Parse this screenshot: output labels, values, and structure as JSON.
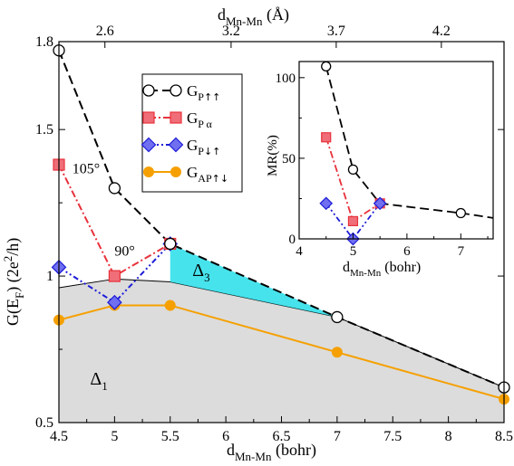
{
  "chart_data": [
    {
      "type": "line",
      "xlabel": "d",
      "xlabel_sub": "Mn-Mn",
      "xlabel_unit": " (bohr)",
      "ylabel": "G(E",
      "ylabel_sub": "F",
      "ylabel_unit": ") (2e",
      "ylabel_sup": "2",
      "ylabel_tail": "/h)",
      "top_xlabel": "d",
      "top_xlabel_sub": "Mn-Mn",
      "top_xlabel_unit": " (Å)",
      "xlim": [
        4.5,
        8.5
      ],
      "ylim": [
        0.5,
        1.8
      ],
      "x_ticks": [
        4.5,
        5,
        5.5,
        6,
        6.5,
        7,
        7.5,
        8,
        8.5
      ],
      "x_tick_labels": [
        "4.5",
        "5",
        "5.5",
        "6",
        "6.5",
        "7",
        "7.5",
        "8",
        "8.5"
      ],
      "y_ticks": [
        0.5,
        1,
        1.5,
        1.8
      ],
      "y_tick_labels": [
        "0.5",
        "1",
        "1.5",
        "1.8"
      ],
      "top_ticks": [
        2.6,
        3.2,
        3.7,
        4.2
      ],
      "top_tick_labels": [
        "2.6",
        "3.2",
        "3.7",
        "4.2"
      ],
      "grid": false,
      "legend_position": "upper-middle",
      "series": [
        {
          "name": "G",
          "sub": "P",
          "arrows": "↑↑",
          "color": "#000000",
          "marker": "circle-open",
          "dash": "10,5",
          "x": [
            4.5,
            5,
            5.5,
            7,
            8.5
          ],
          "y": [
            1.77,
            1.3,
            1.11,
            0.86,
            0.62
          ]
        },
        {
          "name": "G",
          "sub": "P α",
          "arrows": "",
          "color": "#e8323c",
          "marker": "square",
          "dash": "8,3,2,3",
          "x": [
            4.5,
            5,
            5.5
          ],
          "y": [
            1.38,
            1.0,
            1.11
          ]
        },
        {
          "name": "G",
          "sub": "P",
          "arrows": "↓↑",
          "color": "#1c1cd8",
          "marker": "diamond",
          "dash": "6,3,2,3,2,3",
          "x": [
            4.5,
            5,
            5.5
          ],
          "y": [
            1.03,
            0.91,
            1.11
          ]
        },
        {
          "name": "G",
          "sub": "AP",
          "arrows": "↑↓",
          "color": "#f5a000",
          "marker": "circle-filled",
          "dash": "",
          "x": [
            4.5,
            5,
            5.5,
            7,
            8.5
          ],
          "y": [
            0.85,
            0.9,
            0.9,
            0.74,
            0.58
          ]
        }
      ],
      "shaded_regions": [
        {
          "label": "Δ",
          "sub": "1",
          "color": "#dcdcdc",
          "upper_x": [
            4.5,
            5,
            5.5,
            7,
            8.5
          ],
          "upper_y": [
            0.96,
            0.99,
            0.98,
            0.86,
            0.62
          ],
          "label_at": [
            4.78,
            0.63
          ]
        },
        {
          "label": "Δ",
          "sub": "3",
          "color": "#33e0ea",
          "upper_x": [
            5.5,
            7,
            8.5
          ],
          "upper_y": [
            1.11,
            0.86,
            0.62
          ],
          "lower_x": [
            5.5,
            7,
            8.5
          ],
          "lower_y": [
            0.98,
            0.86,
            0.62
          ],
          "label_at": [
            5.7,
            1.0
          ]
        }
      ],
      "annotations": [
        {
          "text": "105°",
          "at": [
            4.62,
            1.35
          ]
        },
        {
          "text": "90°",
          "at": [
            5.0,
            1.07
          ]
        }
      ]
    },
    {
      "type": "line",
      "xlabel": "d",
      "xlabel_sub": "Mn-Mn",
      "xlabel_unit": " (bohr)",
      "ylabel": "MR(%)",
      "xlim": [
        4,
        7.6
      ],
      "ylim": [
        0,
        110
      ],
      "x_ticks": [
        4,
        5,
        6,
        7
      ],
      "x_tick_labels": [
        "4",
        "5",
        "6",
        "7"
      ],
      "y_ticks": [
        0,
        50,
        100
      ],
      "y_tick_labels": [
        "0",
        "50",
        "100"
      ],
      "series": [
        {
          "color": "#000000",
          "marker": "circle-open",
          "dash": "10,5",
          "x": [
            4.5,
            5,
            5.5,
            7,
            7.6
          ],
          "y": [
            107,
            43,
            22,
            16,
            13
          ],
          "marked": [
            true,
            true,
            true,
            true,
            false
          ]
        },
        {
          "color": "#e8323c",
          "marker": "square",
          "dash": "8,3,2,3",
          "x": [
            4.5,
            5,
            5.5
          ],
          "y": [
            63,
            11,
            22
          ],
          "marked": [
            true,
            true,
            true
          ]
        },
        {
          "color": "#1c1cd8",
          "marker": "diamond",
          "dash": "6,3,2,3,2,3",
          "x": [
            4.5,
            5,
            5.5
          ],
          "y": [
            22,
            0,
            22
          ],
          "marked": [
            true,
            true,
            true
          ]
        }
      ]
    }
  ]
}
